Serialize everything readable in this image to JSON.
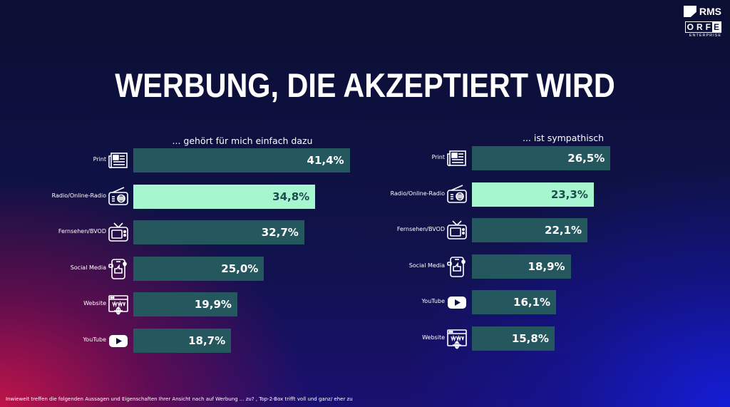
{
  "logo": {
    "rms": "RMS",
    "orf_letters": [
      "O",
      "R",
      "F"
    ],
    "orf_e": "E",
    "enterprise": "ENTERPRISE"
  },
  "title": "WERBUNG, DIE AKZEPTIERT WIRD",
  "footer": "Inwieweit treffen die folgenden Aussagen und Eigenschaften Ihrer Ansicht nach auf Werbung ... zu? , Top-2-Box trifft voll und ganz/ eher zu",
  "colors": {
    "bar": "#25585e",
    "highlight": "#a6f6cf"
  },
  "chart_data": [
    {
      "type": "bar",
      "orientation": "horizontal",
      "title": "... gehört für mich einfach dazu",
      "unit": "%",
      "categories": [
        "Print",
        "Radio/Online-Radio",
        "Fernsehen/BVOD",
        "Social Media",
        "Website",
        "YouTube"
      ],
      "icons": [
        "newspaper-icon",
        "radio-icon",
        "tv-icon",
        "social-media-icon",
        "website-icon",
        "youtube-icon"
      ],
      "values": [
        41.4,
        34.8,
        32.7,
        25.0,
        19.9,
        18.7
      ],
      "labels": [
        "41,4%",
        "34,8%",
        "32,7%",
        "25,0%",
        "19,9%",
        "18,7%"
      ],
      "highlight": "Radio/Online-Radio",
      "xlim": [
        0,
        45
      ]
    },
    {
      "type": "bar",
      "orientation": "horizontal",
      "title": "... ist sympathisch",
      "unit": "%",
      "categories": [
        "Print",
        "Radio/Online-Radio",
        "Fernsehen/BVOD",
        "Social Media",
        "YouTube",
        "Website"
      ],
      "icons": [
        "newspaper-icon",
        "radio-icon",
        "tv-icon",
        "social-media-icon",
        "youtube-icon",
        "website-icon"
      ],
      "values": [
        26.5,
        23.3,
        22.1,
        18.9,
        16.1,
        15.8
      ],
      "labels": [
        "26,5%",
        "23,3%",
        "22,1%",
        "18,9%",
        "16,1%",
        "15,8%"
      ],
      "highlight": "Radio/Online-Radio",
      "xlim": [
        0,
        45
      ]
    }
  ]
}
